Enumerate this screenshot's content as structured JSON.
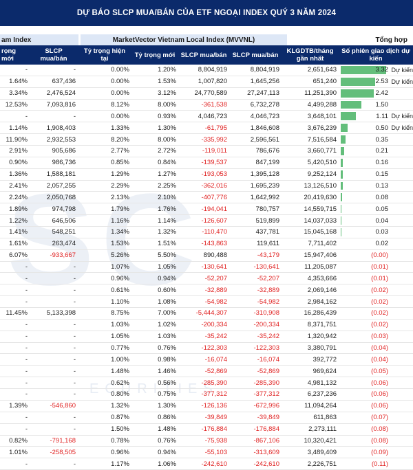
{
  "title": "DỰ BÁO SLCP MUA/BÁN CỦA ETF NGOẠI INDEX QUÝ 3 NĂM 2024",
  "groups": {
    "left": "am Index",
    "mvvnl": "MarketVector Vietnam Local Index (MVVNL)",
    "total": "Tổng hợp"
  },
  "headers": [
    "rọng mới",
    "SLCP mua/bán",
    "Tỷ trọng hiện tại",
    "Tỷ trọng mới",
    "SLCP mua/bán",
    "SLCP mua/bán",
    "KLGDTB/tháng gần nhất",
    "Số phiên giao dịch dự kiến"
  ],
  "watermark": "SC",
  "watermark_sub": "ECURITIES",
  "rows": [
    {
      "c0": "-",
      "c1": "-",
      "c2": "0.00%",
      "c3": "1.20%",
      "c4": "8,804,919",
      "c5": "8,804,919",
      "c6": "2,651,643",
      "c7": "3.32",
      "bar": 1.0,
      "note": "Dự kiến"
    },
    {
      "c0": "1.64%",
      "c1": "637,436",
      "c2": "0.00%",
      "c3": "1.53%",
      "c4": "1,007,820",
      "c5": "1,645,256",
      "c6": "651,240",
      "c7": "2.53",
      "bar": 0.76,
      "note": "Dự kiến"
    },
    {
      "c0": "3.34%",
      "c1": "2,476,524",
      "c2": "0.00%",
      "c3": "3.12%",
      "c4": "24,770,589",
      "c5": "27,247,113",
      "c6": "11,251,390",
      "c7": "2.42",
      "bar": 0.73,
      "note": ""
    },
    {
      "c0": "12.53%",
      "c1": "7,093,816",
      "c2": "8.12%",
      "c3": "8.00%",
      "c4": "-361,538",
      "c5": "6,732,278",
      "c6": "4,499,288",
      "c7": "1.50",
      "bar": 0.45,
      "note": ""
    },
    {
      "c0": "-",
      "c1": "-",
      "c2": "0.00%",
      "c3": "0.93%",
      "c4": "4,046,723",
      "c5": "4,046,723",
      "c6": "3,648,101",
      "c7": "1.11",
      "bar": 0.33,
      "note": "Dự kiến"
    },
    {
      "c0": "1.14%",
      "c1": "1,908,403",
      "c2": "1.33%",
      "c3": "1.30%",
      "c4": "-61,795",
      "c5": "1,846,608",
      "c6": "3,676,239",
      "c7": "0.50",
      "bar": 0.15,
      "note": "Dự kiến"
    },
    {
      "c0": "11.90%",
      "c1": "2,932,553",
      "c2": "8.20%",
      "c3": "8.00%",
      "c4": "-335,992",
      "c5": "2,596,561",
      "c6": "7,516,584",
      "c7": "0.35",
      "bar": 0.1,
      "note": ""
    },
    {
      "c0": "2.91%",
      "c1": "905,686",
      "c2": "2.77%",
      "c3": "2.72%",
      "c4": "-119,011",
      "c5": "786,676",
      "c6": "3,660,771",
      "c7": "0.21",
      "bar": 0.07,
      "note": ""
    },
    {
      "c0": "0.90%",
      "c1": "986,736",
      "c2": "0.85%",
      "c3": "0.84%",
      "c4": "-139,537",
      "c5": "847,199",
      "c6": "5,420,510",
      "c7": "0.16",
      "bar": 0.05,
      "note": ""
    },
    {
      "c0": "1.36%",
      "c1": "1,588,181",
      "c2": "1.29%",
      "c3": "1.27%",
      "c4": "-193,053",
      "c5": "1,395,128",
      "c6": "9,252,124",
      "c7": "0.15",
      "bar": 0.045,
      "note": ""
    },
    {
      "c0": "2.41%",
      "c1": "2,057,255",
      "c2": "2.29%",
      "c3": "2.25%",
      "c4": "-362,016",
      "c5": "1,695,239",
      "c6": "13,126,510",
      "c7": "0.13",
      "bar": 0.04,
      "note": ""
    },
    {
      "c0": "2.24%",
      "c1": "2,050,768",
      "c2": "2.13%",
      "c3": "2.10%",
      "c4": "-407,776",
      "c5": "1,642,992",
      "c6": "20,419,630",
      "c7": "0.08",
      "bar": 0.025,
      "note": ""
    },
    {
      "c0": "1.89%",
      "c1": "974,798",
      "c2": "1.79%",
      "c3": "1.76%",
      "c4": "-194,041",
      "c5": "780,757",
      "c6": "14,559,715",
      "c7": "0.05",
      "bar": 0.018,
      "note": ""
    },
    {
      "c0": "1.22%",
      "c1": "646,506",
      "c2": "1.16%",
      "c3": "1.14%",
      "c4": "-126,607",
      "c5": "519,899",
      "c6": "14,037,033",
      "c7": "0.04",
      "bar": 0.014,
      "note": ""
    },
    {
      "c0": "1.41%",
      "c1": "548,251",
      "c2": "1.34%",
      "c3": "1.32%",
      "c4": "-110,470",
      "c5": "437,781",
      "c6": "15,045,168",
      "c7": "0.03",
      "bar": 0.01,
      "note": ""
    },
    {
      "c0": "1.61%",
      "c1": "263,474",
      "c2": "1.53%",
      "c3": "1.51%",
      "c4": "-143,863",
      "c5": "119,611",
      "c6": "7,711,402",
      "c7": "0.02",
      "bar": 0.007,
      "note": ""
    },
    {
      "c0": "6.07%",
      "c1": "-933,667",
      "c2": "5.26%",
      "c3": "5.50%",
      "c4": "890,488",
      "c5": "-43,179",
      "c6": "15,947,406",
      "c7": "(0.00)",
      "bar": 0,
      "note": ""
    },
    {
      "c0": "-",
      "c1": "-",
      "c2": "1.07%",
      "c3": "1.05%",
      "c4": "-130,641",
      "c5": "-130,641",
      "c6": "11,205,087",
      "c7": "(0.01)",
      "bar": 0,
      "note": ""
    },
    {
      "c0": "-",
      "c1": "-",
      "c2": "0.96%",
      "c3": "0.94%",
      "c4": "-52,207",
      "c5": "-52,207",
      "c6": "4,353,666",
      "c7": "(0.01)",
      "bar": 0,
      "note": ""
    },
    {
      "c0": "-",
      "c1": "-",
      "c2": "0.61%",
      "c3": "0.60%",
      "c4": "-32,889",
      "c5": "-32,889",
      "c6": "2,069,146",
      "c7": "(0.02)",
      "bar": 0,
      "note": ""
    },
    {
      "c0": "-",
      "c1": "-",
      "c2": "1.10%",
      "c3": "1.08%",
      "c4": "-54,982",
      "c5": "-54,982",
      "c6": "2,984,162",
      "c7": "(0.02)",
      "bar": 0,
      "note": ""
    },
    {
      "c0": "11.45%",
      "c1": "5,133,398",
      "c2": "8.75%",
      "c3": "7.00%",
      "c4": "-5,444,307",
      "c5": "-310,908",
      "c6": "16,286,439",
      "c7": "(0.02)",
      "bar": 0,
      "note": ""
    },
    {
      "c0": "-",
      "c1": "-",
      "c2": "1.03%",
      "c3": "1.02%",
      "c4": "-200,334",
      "c5": "-200,334",
      "c6": "8,371,751",
      "c7": "(0.02)",
      "bar": 0,
      "note": ""
    },
    {
      "c0": "-",
      "c1": "-",
      "c2": "1.05%",
      "c3": "1.03%",
      "c4": "-35,242",
      "c5": "-35,242",
      "c6": "1,320,942",
      "c7": "(0.03)",
      "bar": 0,
      "note": ""
    },
    {
      "c0": "-",
      "c1": "-",
      "c2": "0.77%",
      "c3": "0.76%",
      "c4": "-122,303",
      "c5": "-122,303",
      "c6": "3,380,791",
      "c7": "(0.04)",
      "bar": 0,
      "note": ""
    },
    {
      "c0": "-",
      "c1": "-",
      "c2": "1.00%",
      "c3": "0.98%",
      "c4": "-16,074",
      "c5": "-16,074",
      "c6": "392,772",
      "c7": "(0.04)",
      "bar": 0,
      "note": ""
    },
    {
      "c0": "-",
      "c1": "-",
      "c2": "1.48%",
      "c3": "1.46%",
      "c4": "-52,869",
      "c5": "-52,869",
      "c6": "969,624",
      "c7": "(0.05)",
      "bar": 0,
      "note": ""
    },
    {
      "c0": "-",
      "c1": "-",
      "c2": "0.62%",
      "c3": "0.56%",
      "c4": "-285,390",
      "c5": "-285,390",
      "c6": "4,981,132",
      "c7": "(0.06)",
      "bar": 0,
      "note": ""
    },
    {
      "c0": "-",
      "c1": "-",
      "c2": "0.80%",
      "c3": "0.75%",
      "c4": "-377,312",
      "c5": "-377,312",
      "c6": "6,237,236",
      "c7": "(0.06)",
      "bar": 0,
      "note": ""
    },
    {
      "c0": "1.39%",
      "c1": "-546,860",
      "c2": "1.32%",
      "c3": "1.30%",
      "c4": "-126,136",
      "c5": "-672,996",
      "c6": "11,094,264",
      "c7": "(0.06)",
      "bar": 0,
      "note": ""
    },
    {
      "c0": "-",
      "c1": "-",
      "c2": "0.87%",
      "c3": "0.86%",
      "c4": "-39,849",
      "c5": "-39,849",
      "c6": "611,863",
      "c7": "(0.07)",
      "bar": 0,
      "note": ""
    },
    {
      "c0": "-",
      "c1": "-",
      "c2": "1.50%",
      "c3": "1.48%",
      "c4": "-176,884",
      "c5": "-176,884",
      "c6": "2,273,111",
      "c7": "(0.08)",
      "bar": 0,
      "note": ""
    },
    {
      "c0": "0.82%",
      "c1": "-791,168",
      "c2": "0.78%",
      "c3": "0.76%",
      "c4": "-75,938",
      "c5": "-867,106",
      "c6": "10,320,421",
      "c7": "(0.08)",
      "bar": 0,
      "note": ""
    },
    {
      "c0": "1.01%",
      "c1": "-258,505",
      "c2": "0.96%",
      "c3": "0.94%",
      "c4": "-55,103",
      "c5": "-313,609",
      "c6": "3,489,409",
      "c7": "(0.09)",
      "bar": 0,
      "note": ""
    },
    {
      "c0": "-",
      "c1": "-",
      "c2": "1.17%",
      "c3": "1.06%",
      "c4": "-242,610",
      "c5": "-242,610",
      "c6": "2,226,751",
      "c7": "(0.11)",
      "bar": 0,
      "note": ""
    }
  ]
}
